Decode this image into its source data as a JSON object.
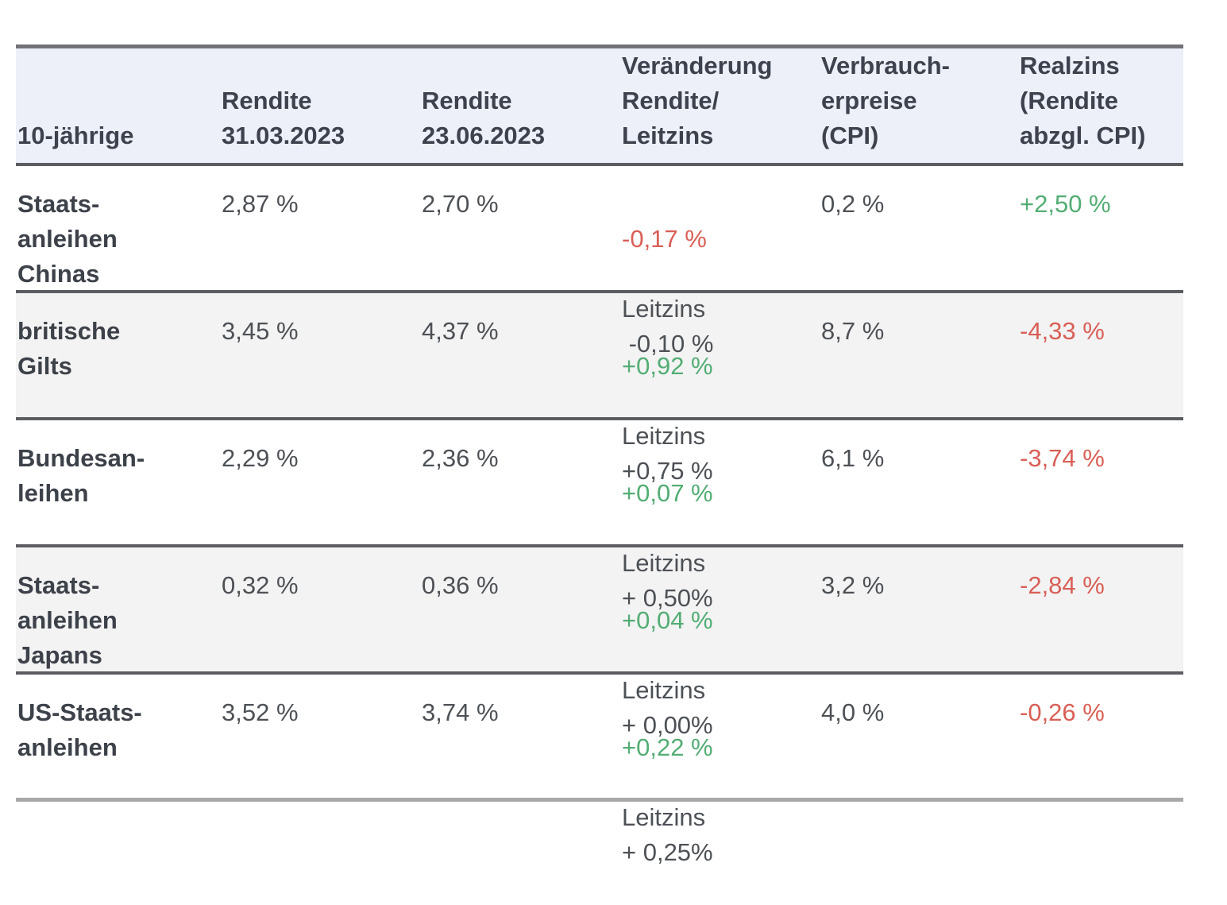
{
  "colors": {
    "positive": "#53ad74",
    "negative": "#d95f56",
    "header_bg": "#edf0f8",
    "stripe_bg": "#f3f3f3",
    "line": "#5b5d60",
    "text": "#4d5156",
    "label_text": "#3d4149"
  },
  "table": {
    "header": {
      "col0": "10-jährige",
      "col1": "Rendite\n31.03.2023",
      "col2": "Rendite\n23.06.2023",
      "col3": "Veränderung\nRendite/\nLeitzins",
      "col4": "Verbrauch-\nerpreise\n(CPI)",
      "col5": "Realzins\n(Rendite\nabzgl. CPI)"
    },
    "rows": [
      {
        "label": "Staats-\nanleihen\nChinas",
        "rendite_start": "2,87 %",
        "rendite_end": "2,70 %",
        "change": "-0,17 %",
        "change_trend": "negative",
        "leitzins": "Leitzins\n -0,10 %",
        "cpi": "0,2 %",
        "realzins": "+2,50 %",
        "realzins_trend": "positive"
      },
      {
        "label": "britische\nGilts",
        "rendite_start": "3,45 %",
        "rendite_end": "4,37 %",
        "change": "+0,92 %",
        "change_trend": "positive",
        "leitzins": "Leitzins\n+0,75 %",
        "cpi": "8,7 %",
        "realzins": "-4,33 %",
        "realzins_trend": "negative"
      },
      {
        "label": "Bundesan-\nleihen",
        "rendite_start": "2,29 %",
        "rendite_end": "2,36 %",
        "change": "+0,07 %",
        "change_trend": "positive",
        "leitzins": "Leitzins\n+ 0,50%",
        "cpi": "6,1 %",
        "realzins": "-3,74 %",
        "realzins_trend": "negative"
      },
      {
        "label": "Staats-\nanleihen\nJapans",
        "rendite_start": "0,32 %",
        "rendite_end": "0,36 %",
        "change": "+0,04 %",
        "change_trend": "positive",
        "leitzins": "Leitzins\n+ 0,00%",
        "cpi": "3,2 %",
        "realzins": "-2,84 %",
        "realzins_trend": "negative"
      },
      {
        "label": "US-Staats-\nanleihen",
        "rendite_start": "3,52 %",
        "rendite_end": "3,74 %",
        "change": "+0,22 %",
        "change_trend": "positive",
        "leitzins": "Leitzins\n+ 0,25%",
        "cpi": "4,0 %",
        "realzins": "-0,26 %",
        "realzins_trend": "negative"
      }
    ]
  },
  "chart_data": {
    "type": "table",
    "title": "",
    "columns": [
      "10-jährige",
      "Rendite 31.03.2023",
      "Rendite 23.06.2023",
      "Veränderung Rendite/Leitzins",
      "Verbraucherpreise (CPI)",
      "Realzins (Rendite abzgl. CPI)"
    ],
    "rows": [
      [
        "Staatsanleihen Chinas",
        "2,87 %",
        "2,70 %",
        "-0,17 % / Leitzins -0,10 %",
        "0,2 %",
        "+2,50 %"
      ],
      [
        "britische Gilts",
        "3,45 %",
        "4,37 %",
        "+0,92 % / Leitzins +0,75 %",
        "8,7 %",
        "-4,33 %"
      ],
      [
        "Bundesanleihen",
        "2,29 %",
        "2,36 %",
        "+0,07 % / Leitzins + 0,50%",
        "6,1 %",
        "-3,74 %"
      ],
      [
        "Staatsanleihen Japans",
        "0,32 %",
        "0,36 %",
        "+0,04 % / Leitzins + 0,00%",
        "3,2 %",
        "-2,84 %"
      ],
      [
        "US-Staatsanleihen",
        "3,52 %",
        "3,74 %",
        "+0,22 % / Leitzins + 0,25%",
        "4,0 %",
        "-0,26 %"
      ]
    ]
  }
}
